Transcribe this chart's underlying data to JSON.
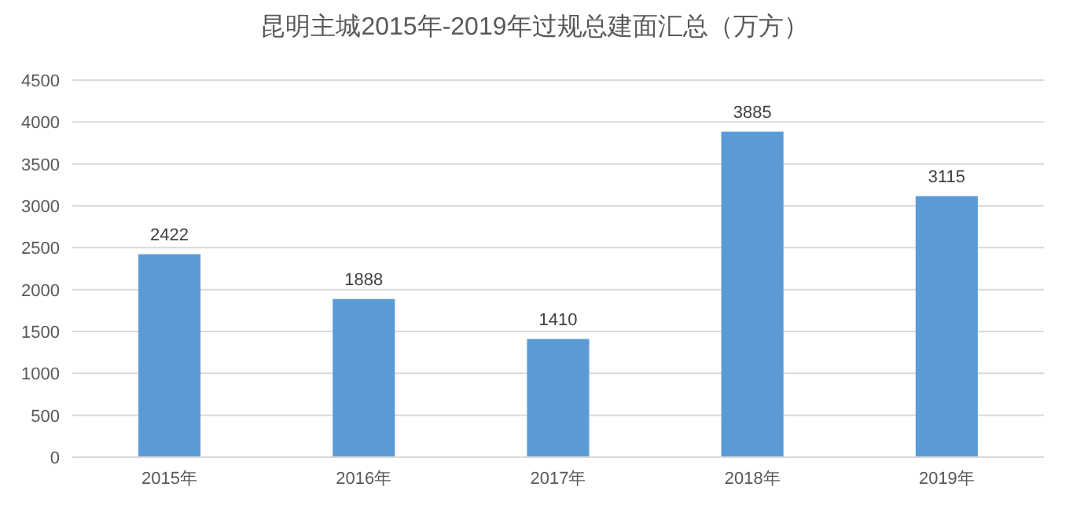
{
  "chart_data": {
    "type": "bar",
    "title": "昆明主城2015年-2019年过规总建面汇总（万方）",
    "categories": [
      "2015年",
      "2016年",
      "2017年",
      "2018年",
      "2019年"
    ],
    "values": [
      2422,
      1888,
      1410,
      3885,
      3115
    ],
    "color": "#5b9bd5",
    "ylim": [
      0,
      4500
    ],
    "yticks": [
      0,
      500,
      1000,
      1500,
      2000,
      2500,
      3000,
      3500,
      4000,
      4500
    ],
    "grid": "y",
    "data_labels": true
  }
}
